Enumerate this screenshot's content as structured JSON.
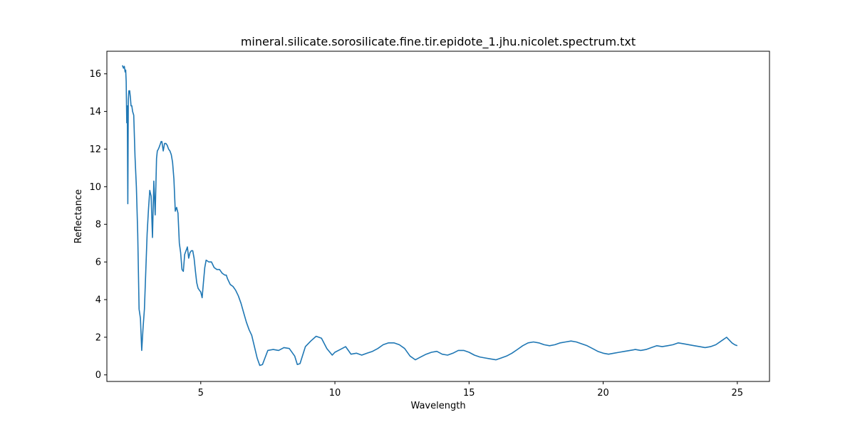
{
  "chart_data": {
    "type": "line",
    "title": "mineral.silicate.sorosilicate.fine.tir.epidote_1.jhu.nicolet.spectrum.txt",
    "xlabel": "Wavelength",
    "ylabel": "Reflectance",
    "xlim": [
      1.5,
      26.2
    ],
    "ylim": [
      -0.35,
      17.2
    ],
    "xticks": [
      5,
      10,
      15,
      20,
      25
    ],
    "yticks": [
      0,
      2,
      4,
      6,
      8,
      10,
      12,
      14,
      16
    ],
    "grid": false,
    "legend": "none",
    "series": [
      {
        "color": "#1f77b4",
        "x": [
          2.08,
          2.12,
          2.15,
          2.18,
          2.2,
          2.22,
          2.24,
          2.26,
          2.28,
          2.3,
          2.32,
          2.35,
          2.38,
          2.4,
          2.43,
          2.46,
          2.5,
          2.55,
          2.6,
          2.65,
          2.7,
          2.75,
          2.8,
          2.85,
          2.9,
          2.95,
          3.0,
          3.05,
          3.1,
          3.15,
          3.2,
          3.25,
          3.3,
          3.35,
          3.38,
          3.42,
          3.45,
          3.5,
          3.52,
          3.55,
          3.6,
          3.65,
          3.7,
          3.75,
          3.8,
          3.85,
          3.9,
          3.95,
          4.0,
          4.05,
          4.1,
          4.15,
          4.2,
          4.25,
          4.3,
          4.35,
          4.4,
          4.45,
          4.5,
          4.55,
          4.6,
          4.65,
          4.7,
          4.75,
          4.8,
          4.85,
          4.9,
          4.95,
          5.0,
          5.05,
          5.1,
          5.15,
          5.2,
          5.3,
          5.4,
          5.5,
          5.6,
          5.7,
          5.8,
          5.9,
          5.95,
          6.0,
          6.1,
          6.2,
          6.3,
          6.4,
          6.5,
          6.6,
          6.7,
          6.8,
          6.9,
          7.0,
          7.1,
          7.2,
          7.3,
          7.5,
          7.7,
          7.9,
          8.1,
          8.3,
          8.5,
          8.6,
          8.7,
          8.9,
          9.1,
          9.3,
          9.5,
          9.7,
          9.9,
          10.0,
          10.2,
          10.4,
          10.5,
          10.6,
          10.8,
          11.0,
          11.2,
          11.4,
          11.6,
          11.8,
          12.0,
          12.2,
          12.4,
          12.6,
          12.8,
          13.0,
          13.2,
          13.4,
          13.6,
          13.8,
          14.0,
          14.2,
          14.4,
          14.6,
          14.8,
          15.0,
          15.2,
          15.4,
          15.6,
          15.8,
          16.0,
          16.2,
          16.4,
          16.6,
          16.8,
          17.0,
          17.2,
          17.4,
          17.6,
          17.8,
          18.0,
          18.2,
          18.4,
          18.6,
          18.8,
          19.0,
          19.2,
          19.4,
          19.6,
          19.8,
          20.0,
          20.2,
          20.4,
          20.6,
          20.8,
          21.0,
          21.2,
          21.4,
          21.6,
          21.8,
          22.0,
          22.2,
          22.4,
          22.6,
          22.8,
          23.0,
          23.2,
          23.4,
          23.6,
          23.8,
          24.0,
          24.2,
          24.4,
          24.6,
          24.8,
          24.9,
          25.0
        ],
        "values": [
          16.45,
          16.3,
          16.4,
          16.1,
          16.2,
          15.6,
          13.4,
          14.3,
          9.1,
          14.6,
          15.1,
          15.1,
          14.7,
          14.3,
          14.3,
          14.0,
          13.8,
          11.6,
          10.0,
          7.5,
          3.5,
          3.0,
          1.3,
          2.5,
          3.5,
          5.5,
          7.5,
          8.8,
          9.8,
          9.5,
          7.3,
          10.3,
          8.5,
          11.5,
          11.9,
          12.0,
          12.1,
          12.3,
          12.4,
          12.4,
          11.9,
          12.3,
          12.3,
          12.2,
          12.0,
          11.9,
          11.7,
          11.3,
          10.4,
          8.7,
          8.9,
          8.6,
          7.0,
          6.5,
          5.6,
          5.5,
          6.4,
          6.6,
          6.8,
          6.2,
          6.5,
          6.6,
          6.6,
          6.2,
          5.5,
          4.9,
          4.6,
          4.5,
          4.4,
          4.1,
          4.9,
          5.7,
          6.1,
          6.0,
          6.0,
          5.7,
          5.6,
          5.6,
          5.4,
          5.3,
          5.3,
          5.1,
          4.8,
          4.7,
          4.5,
          4.2,
          3.8,
          3.3,
          2.8,
          2.4,
          2.1,
          1.5,
          0.9,
          0.5,
          0.55,
          1.3,
          1.35,
          1.3,
          1.45,
          1.4,
          1.0,
          0.55,
          0.6,
          1.5,
          1.8,
          2.05,
          1.95,
          1.4,
          1.05,
          1.2,
          1.35,
          1.5,
          1.3,
          1.1,
          1.15,
          1.05,
          1.15,
          1.25,
          1.4,
          1.6,
          1.7,
          1.7,
          1.6,
          1.4,
          1.0,
          0.8,
          0.95,
          1.1,
          1.2,
          1.25,
          1.1,
          1.05,
          1.15,
          1.3,
          1.3,
          1.2,
          1.05,
          0.95,
          0.9,
          0.85,
          0.8,
          0.9,
          1.0,
          1.15,
          1.35,
          1.55,
          1.7,
          1.75,
          1.7,
          1.6,
          1.55,
          1.6,
          1.7,
          1.75,
          1.8,
          1.75,
          1.65,
          1.55,
          1.4,
          1.25,
          1.15,
          1.1,
          1.15,
          1.2,
          1.25,
          1.3,
          1.35,
          1.3,
          1.35,
          1.45,
          1.55,
          1.5,
          1.55,
          1.6,
          1.7,
          1.65,
          1.6,
          1.55,
          1.5,
          1.45,
          1.5,
          1.6,
          1.8,
          2.0,
          1.7,
          1.6,
          1.55
        ]
      }
    ]
  }
}
